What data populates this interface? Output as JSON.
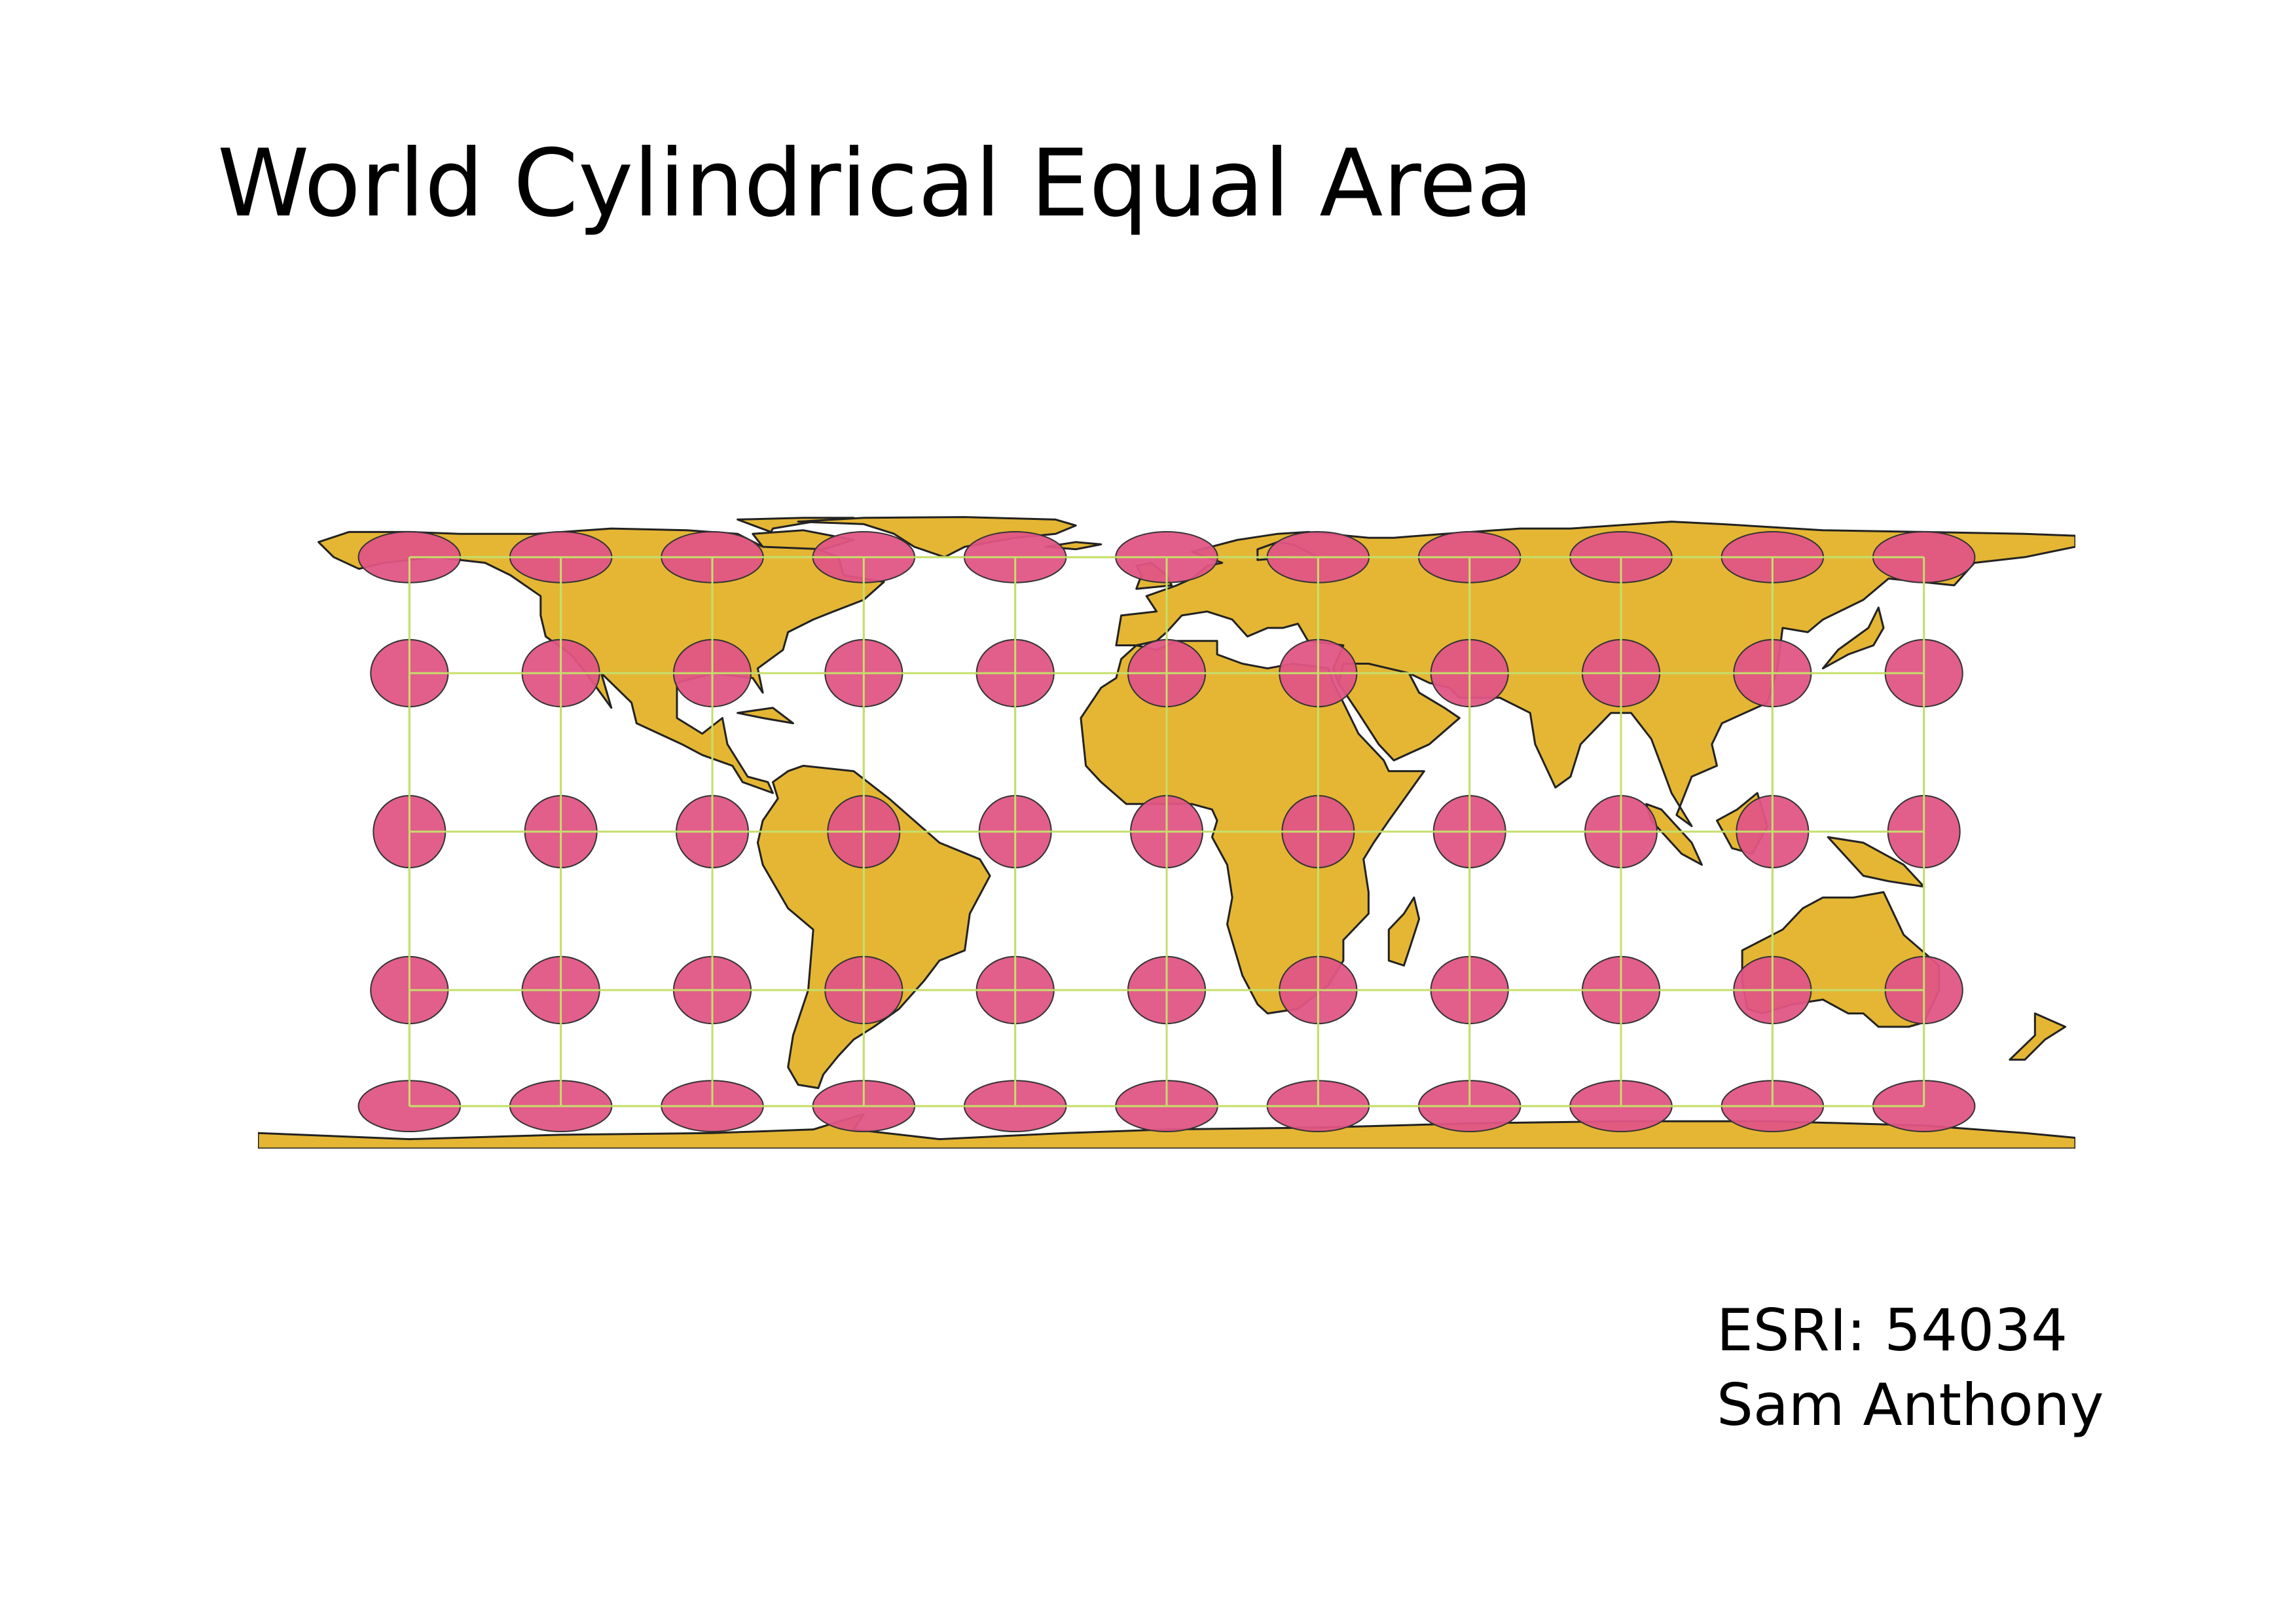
{
  "title": "World Cylindrical Equal Area",
  "credit": {
    "code": "ESRI: 54034",
    "author": "Sam Anthony"
  },
  "map": {
    "projection": "Cylindrical Equal Area",
    "land_color": "#e4b634",
    "coastline_color": "#222222",
    "indicatrix_color": "#e05585",
    "graticule_color": "#c5df6b",
    "graticule_longitudes": [
      -150,
      -120,
      -90,
      -60,
      -30,
      0,
      30,
      60,
      90,
      120,
      150
    ],
    "graticule_latitudes": [
      -60,
      -30,
      0,
      30,
      60
    ],
    "indicatrix_note": "Tissot ellipses at each graticule intersection"
  }
}
